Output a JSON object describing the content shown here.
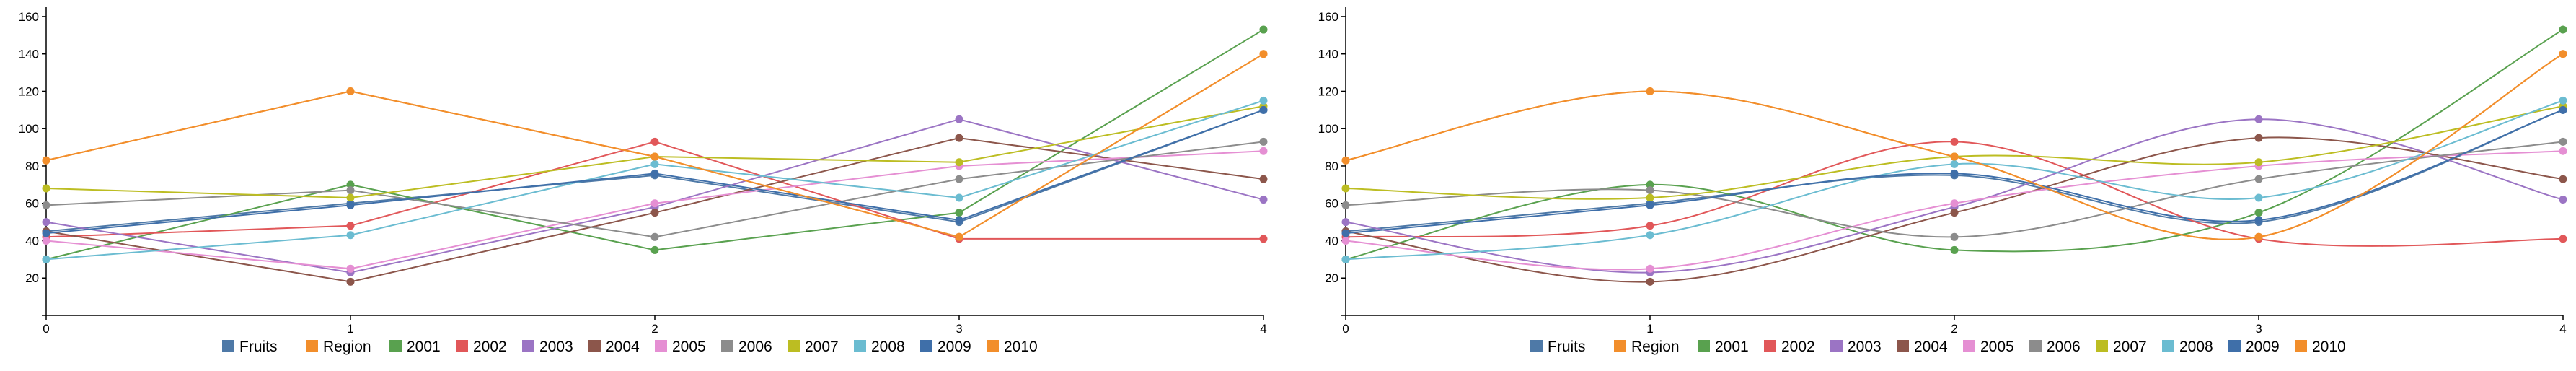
{
  "colors": {
    "axis": "#000000",
    "fruits": "#4e79a7",
    "region": "#f28e2b",
    "2001": "#59a14f",
    "2002": "#e15759",
    "2003": "#9b74c4",
    "2004": "#8c564b",
    "2005": "#e58fd3",
    "2006": "#8c8c8c",
    "2007": "#bcbd22",
    "2008": "#6bbcd1",
    "2009": "#3f6fa9",
    "2010": "#f28e2b"
  },
  "chart_data": [
    {
      "type": "line",
      "curve": "linear",
      "x": [
        0,
        1,
        2,
        3,
        4
      ],
      "xticks": [
        "0",
        "1",
        "2",
        "3",
        "4"
      ],
      "yticks": [
        "20",
        "40",
        "60",
        "80",
        "100",
        "120",
        "140",
        "160"
      ],
      "ylim": [
        0,
        165
      ],
      "xlim": [
        0,
        4
      ],
      "grid": false,
      "legend_position": "bottom",
      "series": [
        {
          "name": "Fruits",
          "color": "#4e79a7",
          "values": [
            45,
            60,
            75,
            50,
            110
          ]
        },
        {
          "name": "Region",
          "color": "#f28e2b",
          "values": [
            83,
            120,
            85,
            42,
            140
          ]
        },
        {
          "name": "2001",
          "color": "#59a14f",
          "values": [
            30,
            70,
            35,
            55,
            153
          ]
        },
        {
          "name": "2002",
          "color": "#e15759",
          "values": [
            42,
            48,
            93,
            41,
            41
          ]
        },
        {
          "name": "2003",
          "color": "#9b74c4",
          "values": [
            50,
            23,
            58,
            105,
            62
          ]
        },
        {
          "name": "2004",
          "color": "#8c564b",
          "values": [
            45,
            18,
            55,
            95,
            73
          ]
        },
        {
          "name": "2005",
          "color": "#e58fd3",
          "values": [
            40,
            25,
            60,
            80,
            88
          ]
        },
        {
          "name": "2006",
          "color": "#8c8c8c",
          "values": [
            59,
            67,
            42,
            73,
            93
          ]
        },
        {
          "name": "2007",
          "color": "#bcbd22",
          "values": [
            68,
            63,
            85,
            82,
            112
          ]
        },
        {
          "name": "2008",
          "color": "#6bbcd1",
          "values": [
            30,
            43,
            81,
            63,
            115
          ]
        },
        {
          "name": "2009",
          "color": "#3f6fa9",
          "values": [
            44,
            59,
            76,
            51,
            110
          ]
        },
        {
          "name": "2010",
          "color": "#f28e2b",
          "values": [
            83,
            120,
            85,
            42,
            140
          ]
        }
      ]
    },
    {
      "type": "line",
      "curve": "smooth",
      "x": [
        0,
        1,
        2,
        3,
        4
      ],
      "xticks": [
        "0",
        "1",
        "2",
        "3",
        "4"
      ],
      "yticks": [
        "20",
        "40",
        "60",
        "80",
        "100",
        "120",
        "140",
        "160"
      ],
      "ylim": [
        0,
        165
      ],
      "xlim": [
        0,
        4
      ],
      "grid": false,
      "legend_position": "bottom",
      "series": [
        {
          "name": "Fruits",
          "color": "#4e79a7",
          "values": [
            45,
            60,
            75,
            50,
            110
          ]
        },
        {
          "name": "Region",
          "color": "#f28e2b",
          "values": [
            83,
            120,
            85,
            42,
            140
          ]
        },
        {
          "name": "2001",
          "color": "#59a14f",
          "values": [
            30,
            70,
            35,
            55,
            153
          ]
        },
        {
          "name": "2002",
          "color": "#e15759",
          "values": [
            42,
            48,
            93,
            41,
            41
          ]
        },
        {
          "name": "2003",
          "color": "#9b74c4",
          "values": [
            50,
            23,
            58,
            105,
            62
          ]
        },
        {
          "name": "2004",
          "color": "#8c564b",
          "values": [
            45,
            18,
            55,
            95,
            73
          ]
        },
        {
          "name": "2005",
          "color": "#e58fd3",
          "values": [
            40,
            25,
            60,
            80,
            88
          ]
        },
        {
          "name": "2006",
          "color": "#8c8c8c",
          "values": [
            59,
            67,
            42,
            73,
            93
          ]
        },
        {
          "name": "2007",
          "color": "#bcbd22",
          "values": [
            68,
            63,
            85,
            82,
            112
          ]
        },
        {
          "name": "2008",
          "color": "#6bbcd1",
          "values": [
            30,
            43,
            81,
            63,
            115
          ]
        },
        {
          "name": "2009",
          "color": "#3f6fa9",
          "values": [
            44,
            59,
            76,
            51,
            110
          ]
        },
        {
          "name": "2010",
          "color": "#f28e2b",
          "values": [
            83,
            120,
            85,
            42,
            140
          ]
        }
      ]
    }
  ]
}
